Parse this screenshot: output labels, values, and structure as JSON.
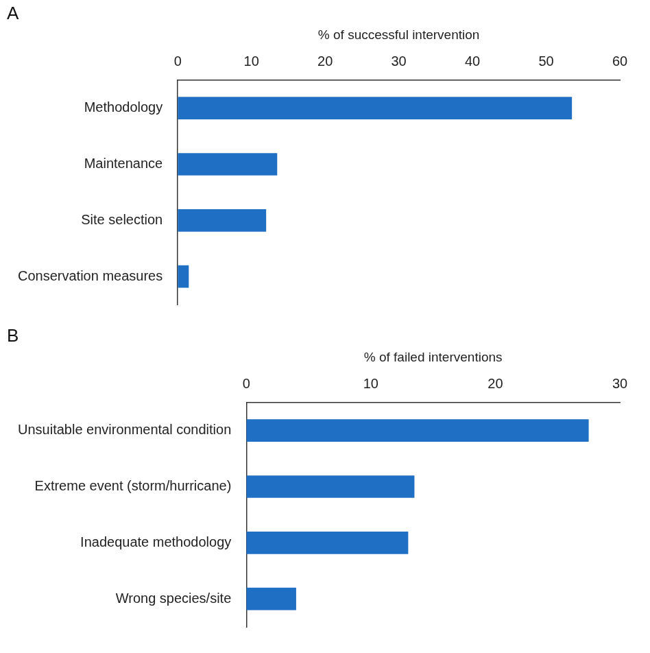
{
  "chart_data": [
    {
      "type": "bar",
      "title": "A",
      "orientation": "horizontal",
      "xlabel": "% of successful intervention",
      "categories": [
        "Methodology",
        "Maintenance",
        "Site selection",
        "Conservation measures"
      ],
      "values": [
        53.5,
        13.5,
        12,
        1.5
      ],
      "color": "#1f6fc5",
      "xlim": [
        0,
        60
      ],
      "xticks": [
        0,
        10,
        20,
        30,
        40,
        50,
        60
      ],
      "grid": false
    },
    {
      "type": "bar",
      "title": "B",
      "orientation": "horizontal",
      "xlabel": "% of failed interventions",
      "categories": [
        "Unsuitable environmental condition",
        "Extreme event (storm/hurricane)",
        "Inadequate methodology",
        "Wrong species/site"
      ],
      "values": [
        27.5,
        13.5,
        13,
        4
      ],
      "color": "#1f6fc5",
      "xlim": [
        0,
        30
      ],
      "xticks": [
        0,
        10,
        20,
        30
      ],
      "grid": false
    }
  ]
}
